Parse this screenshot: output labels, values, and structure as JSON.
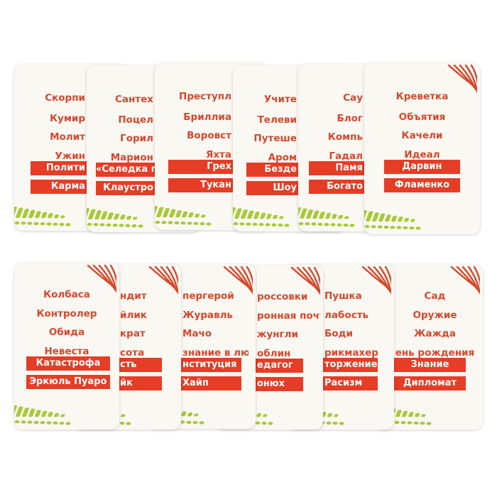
{
  "colors": {
    "word_text": "#d5482c",
    "bar_fill": "#e53d26",
    "bar_text": "#ffffff",
    "card": "#faf8f3",
    "fern": "#a8c93a",
    "claw": "#d5482c"
  },
  "top_row": [
    {
      "words": [
        "Скорпи",
        "Кумир",
        "Молит",
        "Ужин"
      ],
      "bars": [
        "Полити",
        "Карма"
      ]
    },
    {
      "words": [
        "Сантех",
        "Поцел",
        "Горил",
        "Марион"
      ],
      "bars": [
        "«Селедка по",
        "Клаустро"
      ]
    },
    {
      "words": [
        "Преступл",
        "Бриллиа",
        "Воровст",
        "Яхта"
      ],
      "bars": [
        "Грех",
        "Тукан"
      ]
    },
    {
      "words": [
        "Учите",
        "Телеви",
        "Путеше",
        "Аром"
      ],
      "bars": [
        "Безде",
        "Шоу"
      ]
    },
    {
      "words": [
        "Сау",
        "Блог",
        "Компь",
        "Гадал"
      ],
      "bars": [
        "Памя",
        "Богато"
      ]
    },
    {
      "words": [
        "Креветка",
        "Объятия",
        "Качели",
        "Идеал"
      ],
      "bars": [
        "Дарвин",
        "Фламенко"
      ]
    }
  ],
  "bottom_row": [
    {
      "words": [
        "Колбаса",
        "Контролер",
        "Обида",
        "Невеста"
      ],
      "bars": [
        "Катастрофа",
        "Эркюль Пуаро"
      ]
    },
    {
      "words": [
        "ндит",
        "йлик",
        "крат",
        "сота"
      ],
      "bars": [
        "сть",
        "йк"
      ]
    },
    {
      "words": [
        "пергерой",
        "Журавль",
        "Мачо",
        "знание в любви"
      ],
      "bars": [
        "нституция",
        "Хайп"
      ]
    },
    {
      "words": [
        "россовки",
        "ронная почта",
        "жунгли",
        "облин"
      ],
      "bars": [
        "едагог",
        "онюх"
      ]
    },
    {
      "words": [
        "Пушка",
        "лабость",
        "Боди",
        "рикмахер"
      ],
      "bars": [
        "торжение",
        "Расизм"
      ]
    },
    {
      "words": [
        "Сад",
        "Оружие",
        "Жажда",
        "ень рождения"
      ],
      "bars": [
        "Знание",
        "Дипломат"
      ]
    }
  ]
}
